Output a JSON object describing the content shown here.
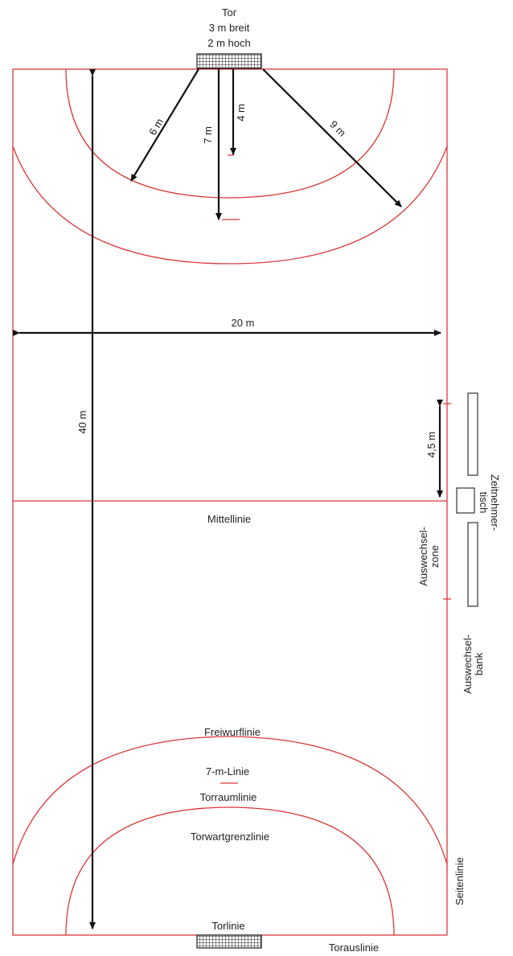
{
  "goal": {
    "title": "Tor",
    "width": "3 m breit",
    "height": "2 m hoch"
  },
  "dimensions": {
    "six_m": "6 m",
    "seven_m": "7 m",
    "four_m": "4 m",
    "nine_m": "9 m",
    "width": "20 m",
    "length": "40 m",
    "sub_zone": "4,5 m"
  },
  "labels": {
    "center_line": "Mittellinie",
    "free_throw_line": "Freiwurflinie",
    "seven_m_line": "7-m-Linie",
    "goal_area_line": "Torraumlinie",
    "goalkeeper_line": "Torwartgrenzlinie",
    "goal_line": "Torlinie",
    "outer_goal_line": "Torauslinie",
    "side_line": "Seitenlinie",
    "substitution_zone_1": "Auswechsel-",
    "substitution_zone_2": "zone",
    "substitution_bench_1": "Auswechsel-",
    "substitution_bench_2": "bank",
    "timekeeper_1": "Zeitnehmer-",
    "timekeeper_2": "tisch"
  }
}
